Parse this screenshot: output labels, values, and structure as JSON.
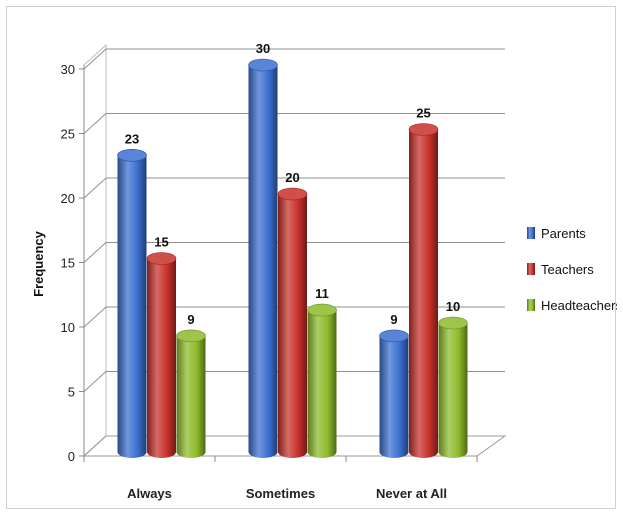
{
  "chart_data": {
    "type": "bar",
    "title": "",
    "xlabel": "",
    "ylabel": "Frequency",
    "ylim": [
      0,
      30
    ],
    "yticks": [
      0,
      5,
      10,
      15,
      20,
      25,
      30
    ],
    "grid": true,
    "legend_position": "right",
    "categories": [
      "Always",
      "Sometimes",
      "Never at All"
    ],
    "series": [
      {
        "name": "Parents",
        "values": [
          23,
          30,
          9
        ],
        "color": "#3a6fd0"
      },
      {
        "name": "Teachers",
        "values": [
          15,
          20,
          25
        ],
        "color": "#c8302a"
      },
      {
        "name": "Headteachers",
        "values": [
          9,
          11,
          10
        ],
        "color": "#8dbb2a"
      }
    ]
  }
}
